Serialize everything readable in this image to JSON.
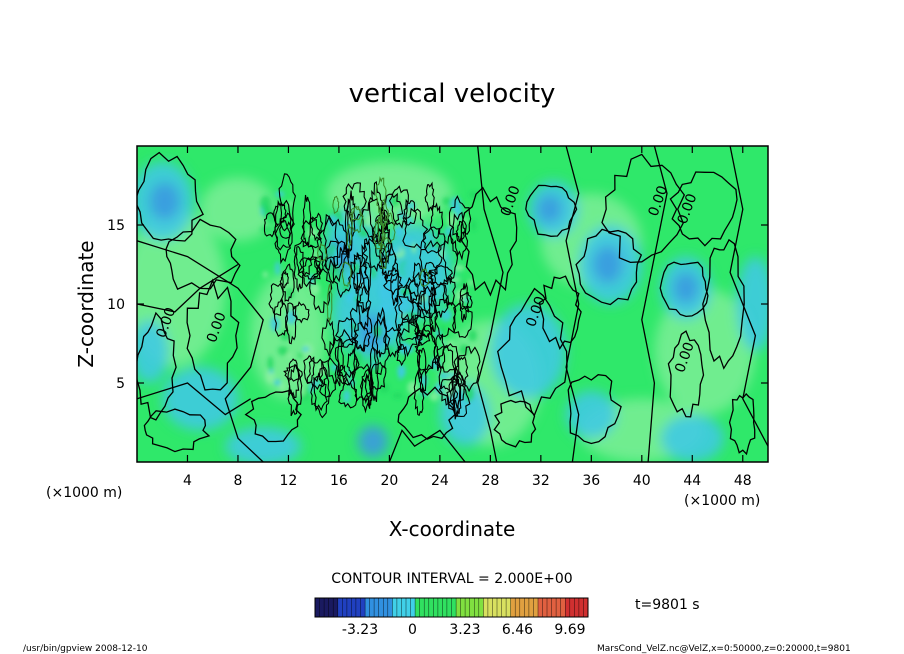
{
  "chart_data": {
    "type": "heatmap",
    "title": "vertical velocity",
    "xlabel": "X-coordinate",
    "ylabel": "Z-coordinate",
    "x_unit_label": "(×1000 m)",
    "x_unit_label_left": "(×1000 m)",
    "xlim": [
      0,
      50
    ],
    "ylim": [
      0,
      20
    ],
    "x_ticks": [
      4,
      8,
      12,
      16,
      20,
      24,
      28,
      32,
      36,
      40,
      44,
      48
    ],
    "y_ticks": [
      5,
      10,
      15
    ],
    "contour_interval_text": "CONTOUR INTERVAL = 2.000E+00",
    "contour_label": "0.00",
    "contour_label_positions": [
      {
        "x": 2.2,
        "z": 7.8
      },
      {
        "x": 6.2,
        "z": 7.5
      },
      {
        "x": 29.5,
        "z": 15.5
      },
      {
        "x": 31.5,
        "z": 8.5
      },
      {
        "x": 41.2,
        "z": 15.5
      },
      {
        "x": 43.5,
        "z": 15.0
      },
      {
        "x": 43.3,
        "z": 5.6
      }
    ],
    "colorbar": {
      "tick_labels": [
        "-3.23",
        "0",
        "3.23",
        "6.46",
        "9.69"
      ],
      "tick_values": [
        -3.23,
        0,
        3.23,
        6.46,
        9.69
      ],
      "range": [
        -6.0,
        10.8
      ]
    },
    "time_label": "t=9801 s",
    "grid": false,
    "legend": "none"
  },
  "footer": {
    "left": "/usr/bin/gpview   2008-12-10",
    "right": "MarsCond_VelZ.nc@VelZ,x=0:50000,z=0:20000,t=9801"
  },
  "colors": {
    "field_base": "#2fe86a",
    "field_light": "#8cf0a0",
    "cyan_patch": "#3ec8e8",
    "blue_patch": "#3a9ae0",
    "contour": "#000000"
  }
}
